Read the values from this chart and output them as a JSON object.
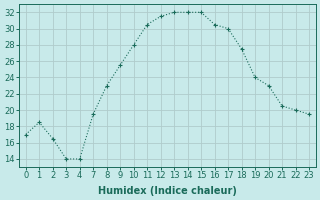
{
  "xlabel": "Humidex (Indice chaleur)",
  "x_labels": [
    "0",
    "1",
    "2",
    "3",
    "4",
    "7",
    "8",
    "9",
    "10",
    "11",
    "12",
    "13",
    "14",
    "15",
    "16",
    "17",
    "18",
    "19",
    "20",
    "21",
    "22",
    "23"
  ],
  "y": [
    17,
    18.5,
    16.5,
    14,
    14,
    19.5,
    23,
    25.5,
    28,
    30.5,
    31.5,
    32,
    32,
    32,
    30.5,
    30,
    27.5,
    24,
    23,
    20.5,
    20,
    19.5
  ],
  "line_color": "#1a6b5a",
  "marker": "+",
  "bg_color": "#c8eaea",
  "grid_color": "#b0cccc",
  "ylim": [
    13,
    33
  ],
  "yticks": [
    14,
    16,
    18,
    20,
    22,
    24,
    26,
    28,
    30,
    32
  ],
  "title_fontsize": 7,
  "label_fontsize": 7,
  "tick_fontsize": 6
}
